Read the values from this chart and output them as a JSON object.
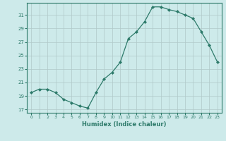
{
  "x": [
    0,
    1,
    2,
    3,
    4,
    5,
    6,
    7,
    8,
    9,
    10,
    11,
    12,
    13,
    14,
    15,
    16,
    17,
    18,
    19,
    20,
    21,
    22,
    23
  ],
  "y": [
    19.5,
    20.0,
    20.0,
    19.5,
    18.5,
    18.0,
    17.5,
    17.2,
    19.5,
    21.5,
    22.5,
    24.0,
    27.5,
    28.5,
    30.0,
    32.2,
    32.2,
    31.8,
    31.5,
    31.0,
    30.5,
    28.5,
    26.5,
    24.0
  ],
  "xlabel": "Humidex (Indice chaleur)",
  "line_color": "#2d7a6a",
  "marker": "D",
  "markersize": 2.0,
  "linewidth": 0.9,
  "bg_color": "#cdeaea",
  "grid_color": "#b0c8c8",
  "ylim": [
    16.5,
    32.8
  ],
  "xlim": [
    -0.5,
    23.5
  ],
  "yticks": [
    17,
    19,
    21,
    23,
    25,
    27,
    29,
    31
  ],
  "xticks": [
    0,
    1,
    2,
    3,
    4,
    5,
    6,
    7,
    8,
    9,
    10,
    11,
    12,
    13,
    14,
    15,
    16,
    17,
    18,
    19,
    20,
    21,
    22,
    23
  ],
  "xtick_labels": [
    "0",
    "1",
    "2",
    "3",
    "4",
    "5",
    "6",
    "7",
    "8",
    "9",
    "10",
    "11",
    "12",
    "13",
    "14",
    "15",
    "16",
    "17",
    "18",
    "19",
    "20",
    "21",
    "22",
    "23"
  ]
}
